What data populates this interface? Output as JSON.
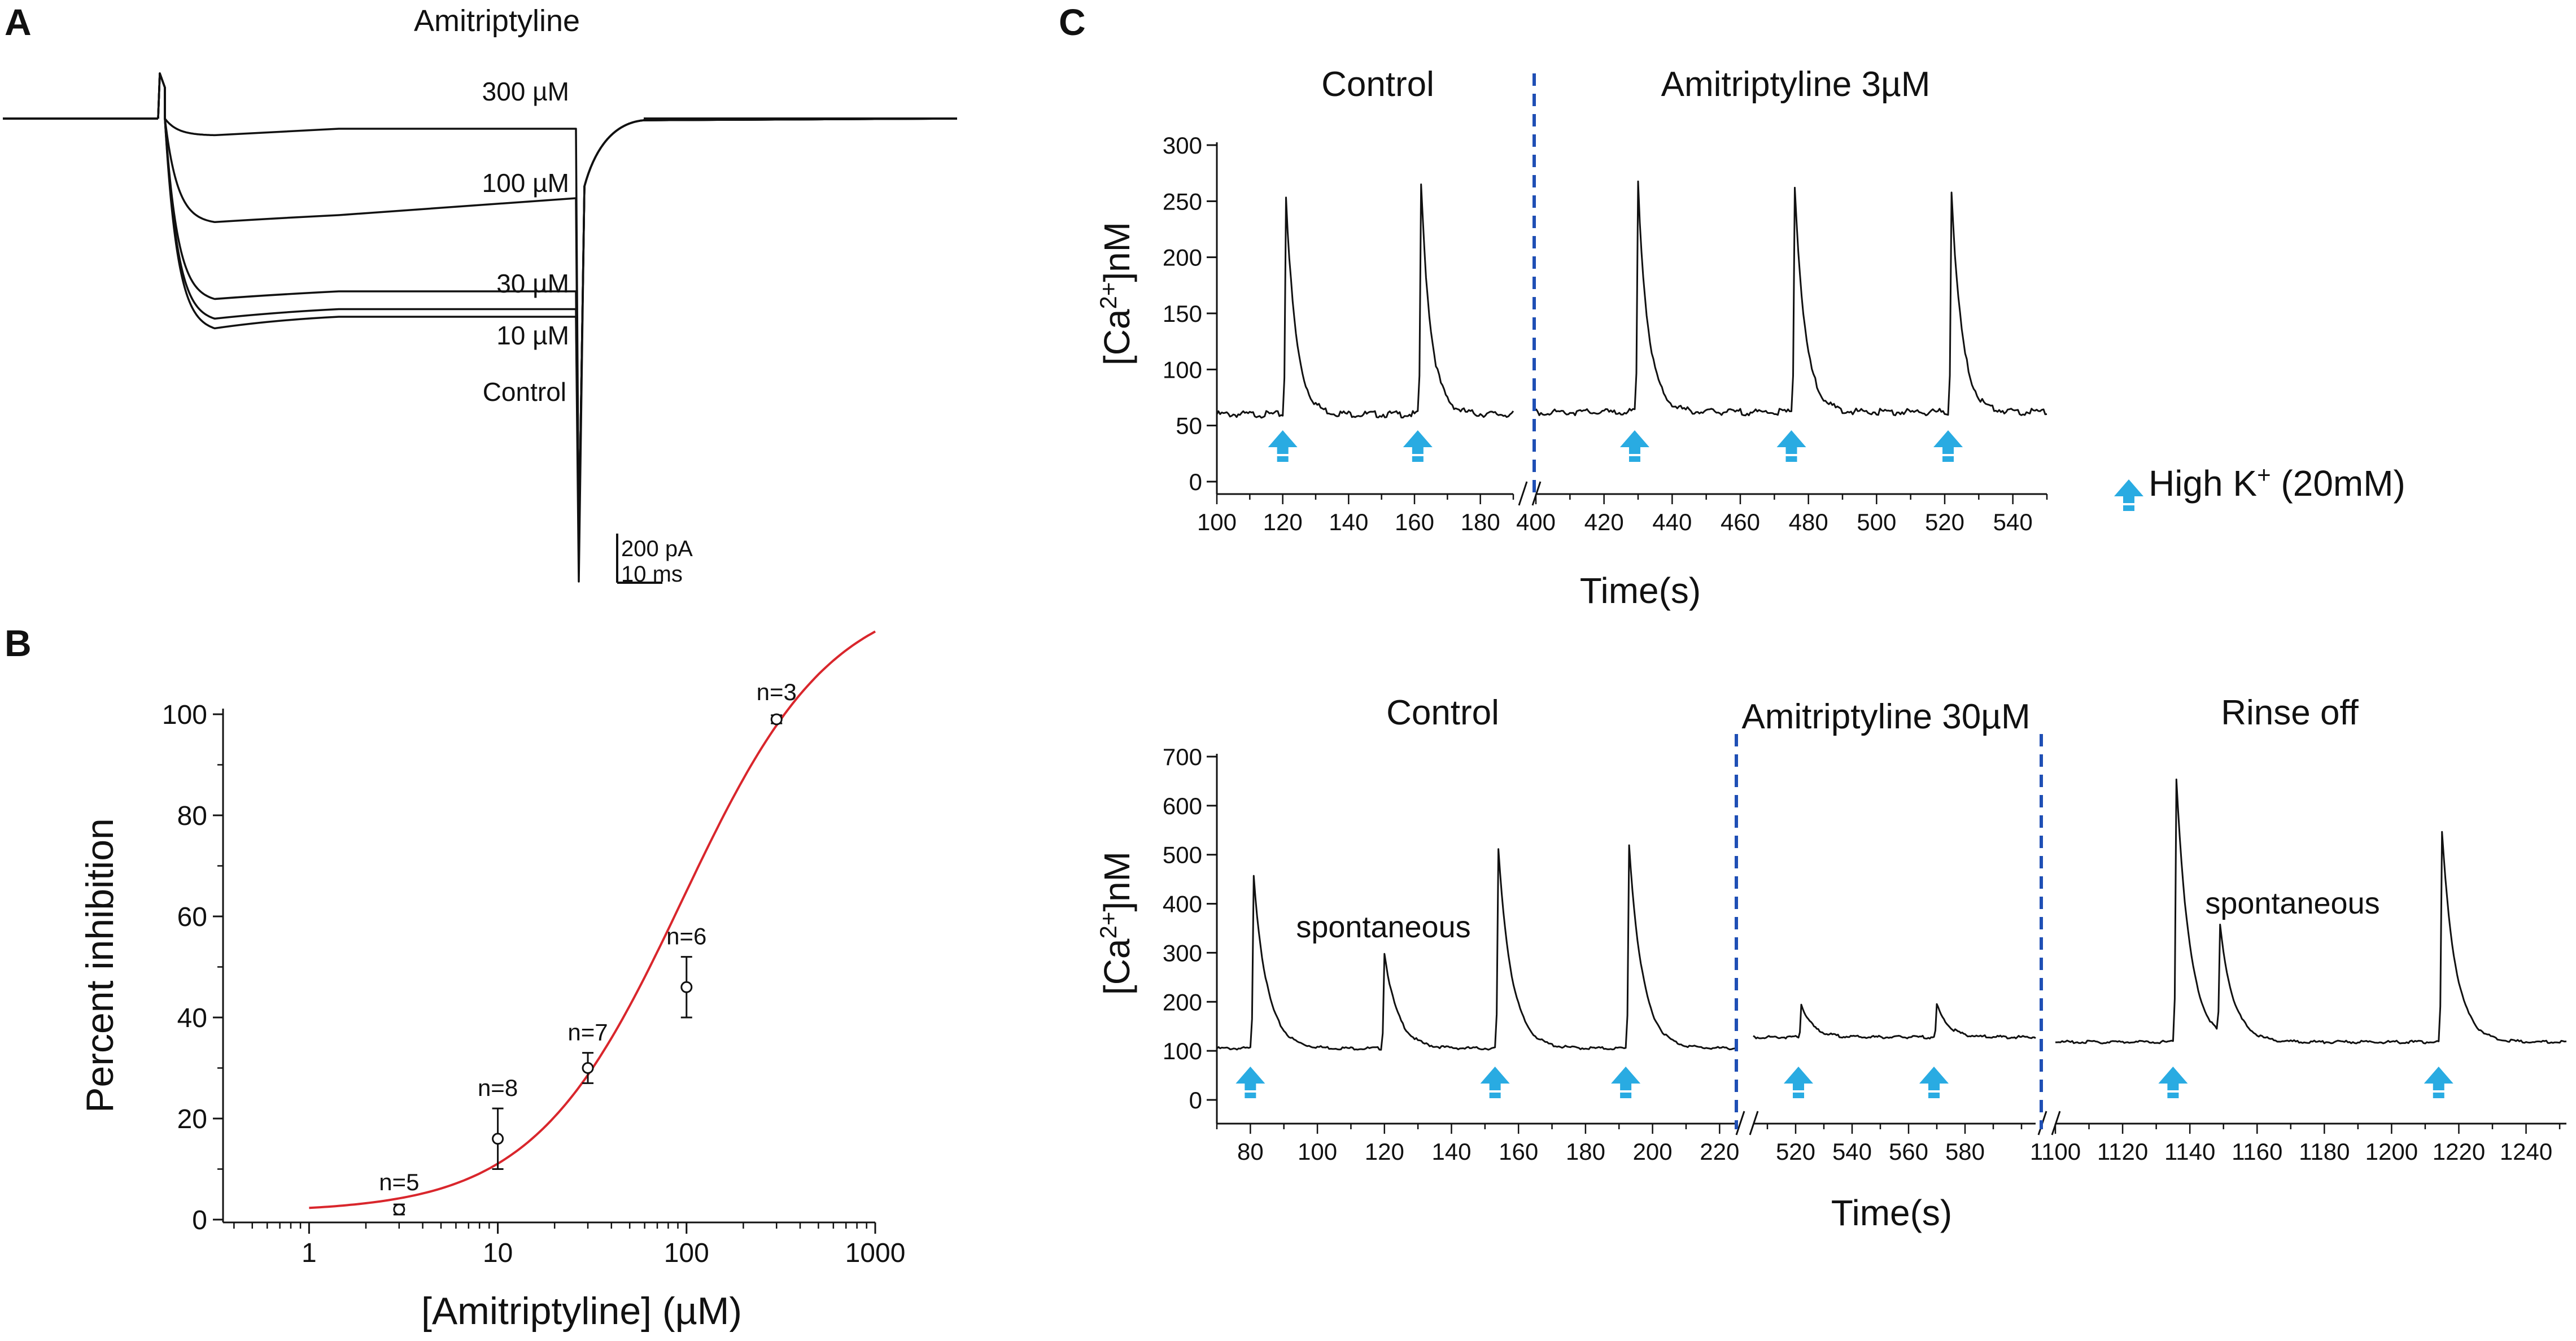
{
  "colors": {
    "trace": "#111111",
    "fit_curve": "#d9262c",
    "divider": "#1f4fb5",
    "arrow": "#29abe2",
    "text": "#111111"
  },
  "chart_data": [
    {
      "panel": "A",
      "type": "line",
      "title": "Amitriptyline",
      "series": [
        {
          "name": "300 µM",
          "steady_current_pA": -20
        },
        {
          "name": "100 µM",
          "steady_current_pA": -190
        },
        {
          "name": "30 µM",
          "steady_current_pA": -340
        },
        {
          "name": "10 µM",
          "steady_current_pA": -375
        },
        {
          "name": "Control",
          "steady_current_pA": -390
        }
      ],
      "scale_bar": {
        "current_label": "200  pA",
        "time_label": "10  ms"
      }
    },
    {
      "panel": "B",
      "type": "scatter",
      "xlabel": "[Amitriptyline] (µM)",
      "ylabel": "Percent inhibition",
      "xscale": "log",
      "xlim": [
        0.35,
        1000
      ],
      "ylim": [
        0,
        100
      ],
      "xticks": [
        1,
        10,
        100,
        1000
      ],
      "xtick_labels": [
        "1",
        "10",
        "100",
        "1000"
      ],
      "yticks": [
        0,
        20,
        40,
        60,
        80,
        100
      ],
      "ytick_labels": [
        "0",
        "20",
        "40",
        "60",
        "80",
        "100"
      ],
      "points": [
        {
          "x": 3,
          "y": 2,
          "err": 1,
          "label": "n=5"
        },
        {
          "x": 10,
          "y": 16,
          "err": 6,
          "label": "n=8"
        },
        {
          "x": 30,
          "y": 30,
          "err": 3,
          "label": "n=7"
        },
        {
          "x": 100,
          "y": 46,
          "err": 6,
          "label": "n=6"
        },
        {
          "x": 300,
          "y": 99,
          "err": 0.8,
          "label": "n=3"
        }
      ],
      "fit": {
        "type": "hill",
        "ic50": 95,
        "hill": 1.1,
        "min": 1.5,
        "max": 125,
        "x_range": [
          1,
          1000
        ]
      }
    },
    {
      "panel": "C",
      "type": "line",
      "xlabel": "Time(s)",
      "ylabel_prefix": "[Ca",
      "ylabel_sup": "2+",
      "ylabel_suffix": "]nM",
      "ylim": [
        0,
        300
      ],
      "yticks": [
        0,
        50,
        100,
        150,
        200,
        250,
        300
      ],
      "ytick_labels": [
        "0",
        "50",
        "100",
        "150",
        "200",
        "250",
        "300"
      ],
      "conditions": [
        "Control",
        "Amitriptyline  3µM"
      ],
      "segments": [
        {
          "x_range": [
            100,
            190
          ],
          "baseline": 60,
          "xticks": [
            100,
            120,
            140,
            160,
            180
          ],
          "xtick_labels": [
            "100",
            "120",
            "140",
            "160",
            "180"
          ]
        },
        {
          "x_range": [
            400,
            550
          ],
          "baseline": 62,
          "xticks": [
            400,
            420,
            440,
            460,
            480,
            500,
            520,
            540
          ],
          "xtick_labels": [
            "400",
            "420",
            "440",
            "460",
            "480",
            "500",
            "520",
            "540"
          ]
        }
      ],
      "peaks": [
        {
          "x": 121,
          "y": 255
        },
        {
          "x": 162,
          "y": 265
        },
        {
          "x": 430,
          "y": 265
        },
        {
          "x": 476,
          "y": 265
        },
        {
          "x": 522,
          "y": 260
        }
      ],
      "arrows_x": [
        120,
        161,
        429,
        475,
        521
      ]
    },
    {
      "panel": "C",
      "type": "line",
      "xlabel": "Time(s)",
      "ylabel_prefix": "[Ca",
      "ylabel_sup": "2+",
      "ylabel_suffix": "]nM",
      "ylim": [
        0,
        700
      ],
      "yticks": [
        0,
        100,
        200,
        300,
        400,
        500,
        600,
        700
      ],
      "ytick_labels": [
        "0",
        "100",
        "200",
        "300",
        "400",
        "500",
        "600",
        "700"
      ],
      "conditions": [
        "Control",
        "Amitriptyline  30µM",
        "Rinse off"
      ],
      "annotations": [
        "spontaneous",
        "spontaneous"
      ],
      "segments": [
        {
          "x_range": [
            70,
            225
          ],
          "baseline": 105,
          "xticks": [
            80,
            100,
            120,
            140,
            160,
            180,
            200,
            220
          ],
          "xtick_labels": [
            "80",
            "100",
            "120",
            "140",
            "160",
            "180",
            "200",
            "220"
          ]
        },
        {
          "x_range": [
            505,
            605
          ],
          "baseline": 128,
          "xticks": [
            520,
            540,
            560,
            580
          ],
          "xtick_labels": [
            "520",
            "540",
            "560",
            "580"
          ]
        },
        {
          "x_range": [
            1100,
            1252
          ],
          "baseline": 118,
          "xticks": [
            1100,
            1120,
            1140,
            1160,
            1180,
            1200,
            1220,
            1240
          ],
          "xtick_labels": [
            "1100",
            "1120",
            "1140",
            "1160",
            "1180",
            "1200",
            "1220",
            "1240"
          ]
        }
      ],
      "peaks": [
        {
          "x": 81,
          "y": 455
        },
        {
          "x": 120,
          "y": 300
        },
        {
          "x": 154,
          "y": 510
        },
        {
          "x": 193,
          "y": 520
        },
        {
          "x": 522,
          "y": 195
        },
        {
          "x": 570,
          "y": 195
        },
        {
          "x": 1136,
          "y": 655
        },
        {
          "x": 1149,
          "y": 335
        },
        {
          "x": 1215,
          "y": 545
        }
      ],
      "arrows_x": [
        80,
        153,
        192,
        521,
        569,
        1135,
        1214
      ]
    }
  ],
  "legend": {
    "label_prefix": "High  K",
    "label_sup": "+",
    "label_suffix": " (20mM)"
  },
  "panel_labels": [
    "A",
    "B",
    "C"
  ]
}
